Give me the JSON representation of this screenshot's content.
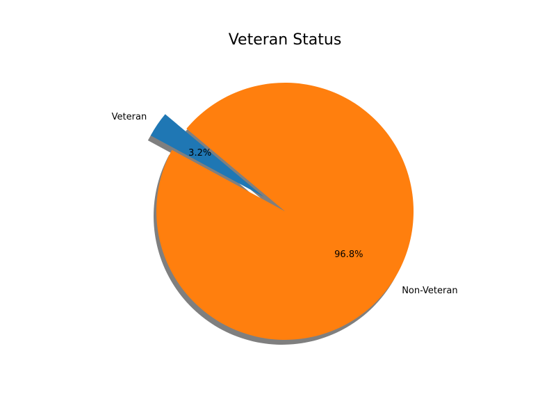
{
  "chart_data": {
    "type": "pie",
    "title": "Veteran Status",
    "slices": [
      {
        "label": "Veteran",
        "value": 3.2,
        "display": "3.2%",
        "color": "#1f77b4",
        "exploded": true
      },
      {
        "label": "Non-Veteran",
        "value": 96.8,
        "display": "96.8%",
        "color": "#ff7f0e",
        "exploded": false
      }
    ],
    "start_angle_deg": 140,
    "direction": "counterclockwise",
    "shadow": true,
    "shadow_color": "#7f7f7f",
    "legend": "none"
  }
}
